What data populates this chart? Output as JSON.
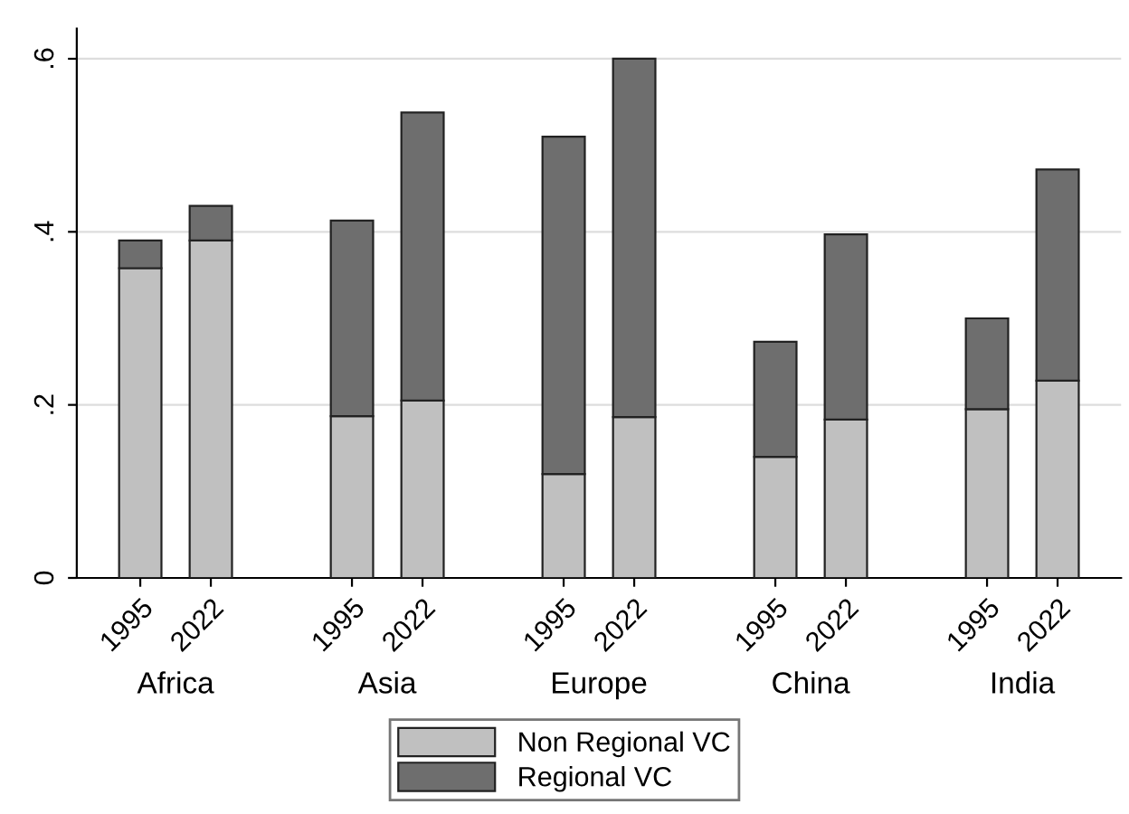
{
  "chart_data": {
    "type": "bar",
    "stacked": true,
    "categories": [
      "1995",
      "2022",
      null,
      "1995",
      "2022",
      null,
      "1995",
      "2022",
      null,
      "1995",
      "2022",
      null,
      "1995",
      "2022"
    ],
    "series": [
      {
        "name": "Non Regional VC",
        "color": "#c0c0c0",
        "values": [
          0.358,
          0.39,
          null,
          0.187,
          0.205,
          null,
          0.12,
          0.186,
          null,
          0.14,
          0.183,
          null,
          0.195,
          0.228
        ]
      },
      {
        "name": "Regional VC",
        "color": "#6e6e6e",
        "values": [
          0.032,
          0.04,
          null,
          0.226,
          0.333,
          null,
          0.39,
          0.414,
          null,
          0.133,
          0.214,
          null,
          0.105,
          0.244
        ]
      }
    ],
    "annotations": [
      "Africa",
      "Asia",
      "Europe",
      "China",
      "India"
    ],
    "ylim": [
      0,
      0.635
    ],
    "yticks": [
      0,
      {
        "value": 0.2,
        "label": ".2"
      },
      {
        "value": 0.4,
        "label": ".4"
      },
      {
        "value": 0.6,
        "label": ".6"
      }
    ],
    "grid": "y",
    "legend": "bottom"
  }
}
